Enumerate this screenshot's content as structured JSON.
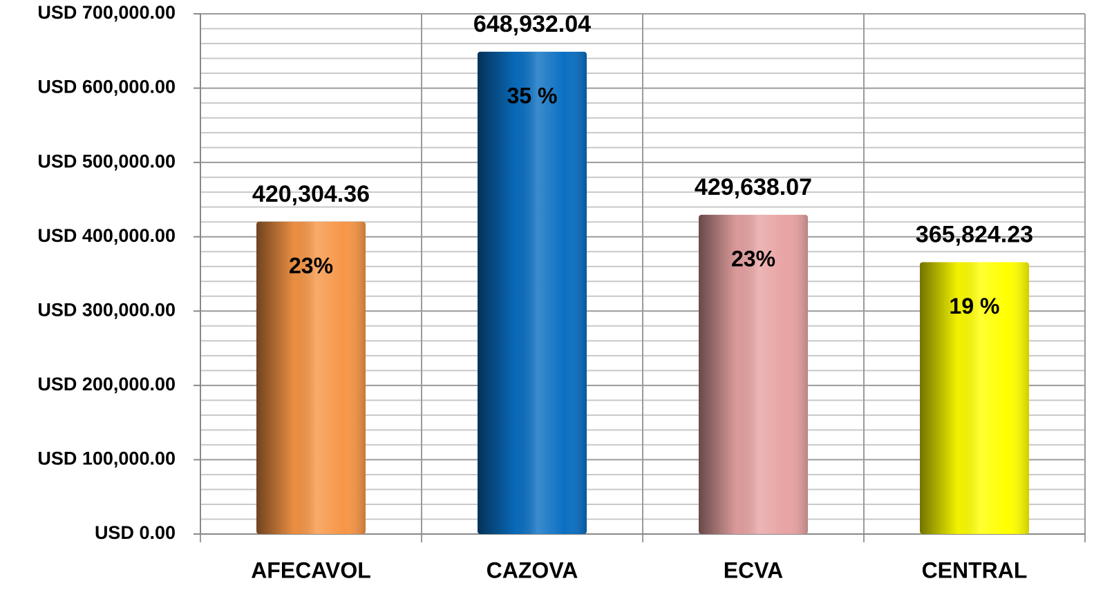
{
  "chart_data": {
    "type": "bar",
    "categories": [
      "AFECAVOL",
      "CAZOVA",
      "ECVA",
      "CENTRAL"
    ],
    "values": [
      420304.36,
      648932.04,
      429638.07,
      365824.23
    ],
    "value_labels": [
      "420,304.36",
      "648,932.04",
      "429,638.07",
      "365,824.23"
    ],
    "share_labels": [
      "23%",
      "35 %",
      "23%",
      "19 %"
    ],
    "colors": [
      "#f79646",
      "#0a6fc2",
      "#e8a3a3",
      "#ffff00"
    ],
    "ylim": [
      0,
      700000
    ],
    "yticks": [
      {
        "value": 0,
        "label": "USD 0.00"
      },
      {
        "value": 100000,
        "label": "USD 100,000.00"
      },
      {
        "value": 200000,
        "label": "USD 200,000.00"
      },
      {
        "value": 300000,
        "label": "USD 300,000.00"
      },
      {
        "value": 400000,
        "label": "USD 400,000.00"
      },
      {
        "value": 500000,
        "label": "USD 500,000.00"
      },
      {
        "value": 600000,
        "label": "USD 600,000.00"
      },
      {
        "value": 700000,
        "label": "USD 700,000.00"
      }
    ],
    "yminor_ticks": [
      20000,
      40000,
      60000,
      80000,
      120000,
      140000,
      160000,
      180000,
      220000,
      240000,
      260000,
      280000,
      320000,
      340000,
      360000,
      380000,
      420000,
      440000,
      460000,
      480000,
      520000,
      540000,
      560000,
      580000,
      620000,
      640000,
      660000,
      680000
    ],
    "grid": true
  }
}
